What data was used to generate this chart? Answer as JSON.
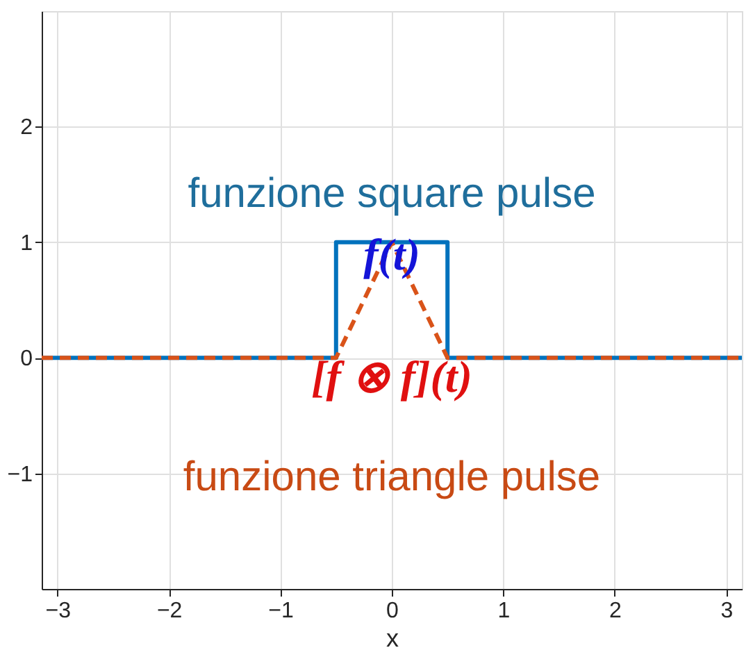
{
  "chart_data": {
    "type": "line",
    "xlabel": "x",
    "series": [
      {
        "color": "#0072bd",
        "line_style": "solid",
        "x": [
          -3.1416,
          -0.5,
          -0.5,
          0.5,
          0.5,
          3.1416
        ],
        "values": [
          0,
          0,
          1,
          1,
          0,
          0
        ]
      },
      {
        "color": "#d95319",
        "line_style": "dashed",
        "x": [
          -3.1416,
          -0.5,
          0,
          0.5,
          3.1416
        ],
        "values": [
          0,
          0,
          1,
          0,
          0
        ]
      }
    ],
    "annotations": [
      "funzione square pulse",
      "f(t)",
      "[f ⊗ f](t)",
      "funzione triangle pulse"
    ],
    "xlim": [
      -3.1416,
      3.1416
    ],
    "ylim": [
      -2,
      3
    ],
    "xticks": [
      -3,
      -2,
      -1,
      0,
      1,
      2,
      3
    ],
    "yticks": [
      -1,
      0,
      1,
      2
    ],
    "grid": true,
    "marker": "none"
  }
}
